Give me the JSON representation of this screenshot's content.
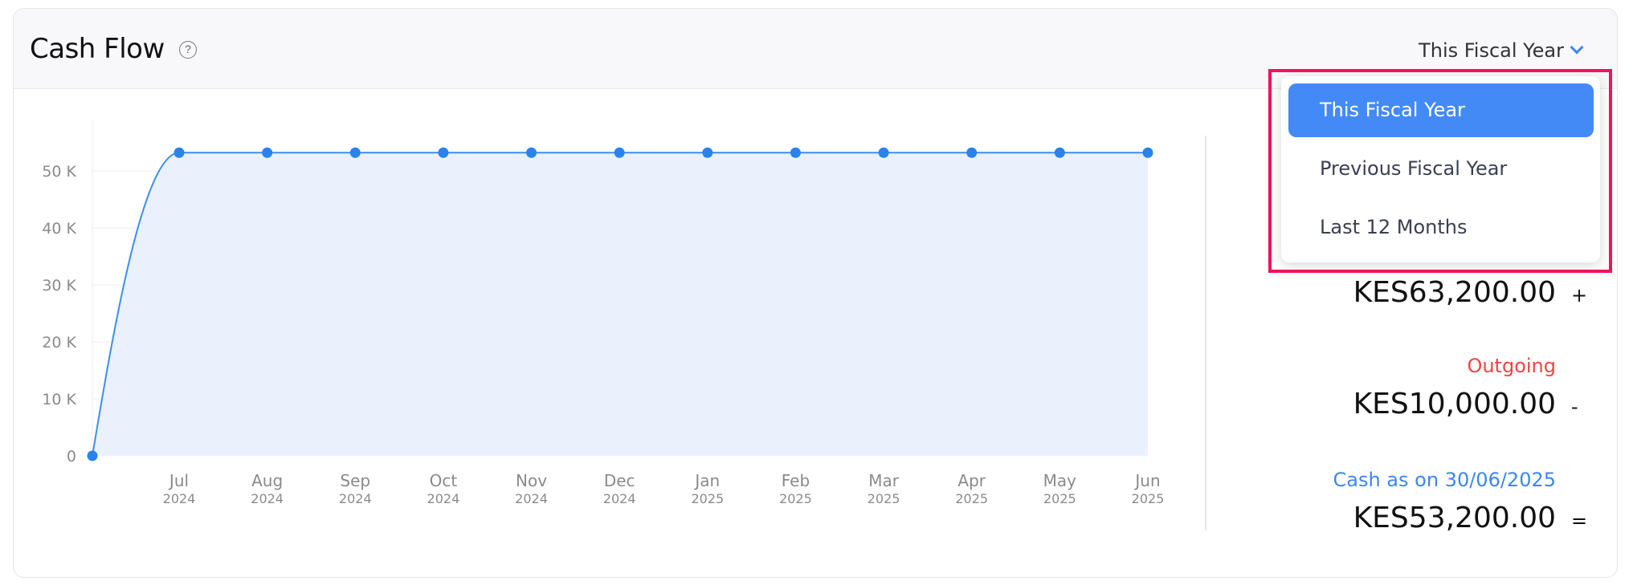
{
  "header": {
    "title": "Cash Flow",
    "help_icon": "question-circle-icon",
    "period_selected": "This Fiscal Year"
  },
  "dropdown": {
    "options": [
      "This Fiscal Year",
      "Previous Fiscal Year",
      "Last 12 Months"
    ],
    "selected": "This Fiscal Year"
  },
  "summary": {
    "incoming_amount": "KES63,200.00",
    "incoming_sign": "+",
    "outgoing_label": "Outgoing",
    "outgoing_amount": "KES10,000.00",
    "outgoing_sign": "-",
    "closing_label": "Cash as on 30/06/2025",
    "closing_amount": "KES53,200.00",
    "closing_sign": "=",
    "colors": {
      "outgoing": "#ef4444",
      "closing": "#3d86ee"
    }
  },
  "chart_data": {
    "type": "area",
    "x": [
      "",
      "Jul 2024",
      "Aug 2024",
      "Sep 2024",
      "Oct 2024",
      "Nov 2024",
      "Dec 2024",
      "Jan 2025",
      "Feb 2025",
      "Mar 2025",
      "Apr 2025",
      "May 2025",
      "Jun 2025"
    ],
    "x_tick_labels": [
      [
        "Jul",
        "2024"
      ],
      [
        "Aug",
        "2024"
      ],
      [
        "Sep",
        "2024"
      ],
      [
        "Oct",
        "2024"
      ],
      [
        "Nov",
        "2024"
      ],
      [
        "Dec",
        "2024"
      ],
      [
        "Jan",
        "2025"
      ],
      [
        "Feb",
        "2025"
      ],
      [
        "Mar",
        "2025"
      ],
      [
        "Apr",
        "2025"
      ],
      [
        "May",
        "2025"
      ],
      [
        "Jun",
        "2025"
      ]
    ],
    "values": [
      0,
      53200,
      53200,
      53200,
      53200,
      53200,
      53200,
      53200,
      53200,
      53200,
      53200,
      53200,
      53200
    ],
    "y_ticks": [
      "0",
      "10 K",
      "20 K",
      "30 K",
      "40 K",
      "50 K"
    ],
    "ylim": [
      0,
      55000
    ],
    "grid": true,
    "colors": {
      "line": "#3d8ef0",
      "fill": "#eaf1fd",
      "point": "#2a83ea"
    }
  }
}
